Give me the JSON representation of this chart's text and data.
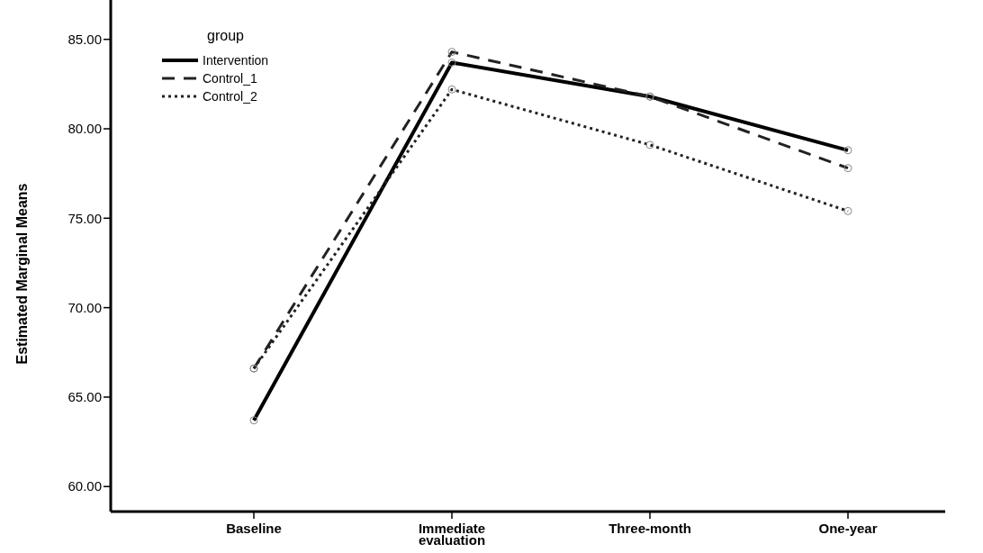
{
  "chart_data": {
    "type": "line",
    "ylabel": "Estimated Marginal Means",
    "legend_title": "group",
    "categories": [
      "Baseline",
      "Immediate evaluation",
      "Three-month",
      "One-year"
    ],
    "series": [
      {
        "name": "Intervention",
        "color": "#000000",
        "line_style": "solid",
        "values": [
          63.7,
          83.7,
          81.8,
          78.8
        ]
      },
      {
        "name": "Control_1",
        "color": "#222222",
        "line_style": "dashed",
        "values": [
          66.6,
          84.3,
          81.8,
          77.8
        ]
      },
      {
        "name": "Control_2",
        "color": "#222222",
        "line_style": "dotted",
        "values": [
          66.6,
          82.2,
          79.1,
          75.4
        ]
      }
    ],
    "ylim": [
      58.6,
      87.2
    ],
    "yticks": [
      {
        "value": 60,
        "label": "60.00"
      },
      {
        "value": 65,
        "label": "65.00"
      },
      {
        "value": 70,
        "label": "70.00"
      },
      {
        "value": 75,
        "label": "75.00"
      },
      {
        "value": 80,
        "label": "80.00"
      },
      {
        "value": 85,
        "label": "85.00"
      }
    ],
    "legend": "top left",
    "marker": "circle",
    "grid": false
  }
}
